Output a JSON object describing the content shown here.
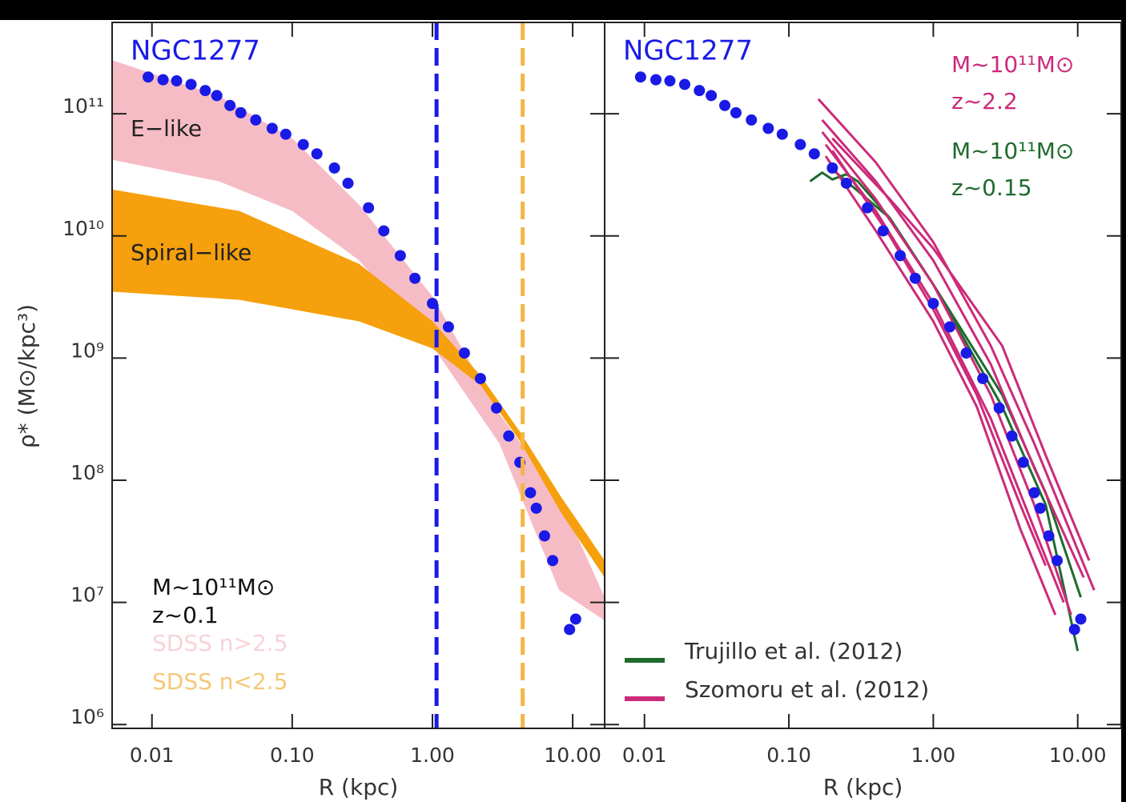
{
  "chart_data": [
    {
      "type": "scatter",
      "xlabel": "R (kpc)",
      "ylabel": "ρ* (M⊙/kpc³)",
      "xlim": [
        0.0052,
        16.9
      ],
      "ylim": [
        930000,
        560000000000.0
      ],
      "log_x": true,
      "log_y": true,
      "xticks": [
        0.01,
        {
          "value": 0.1,
          "label": "0.10"
        },
        {
          "value": 1,
          "label": "1.00"
        },
        {
          "value": 10,
          "label": "10.00"
        }
      ],
      "yticks": [
        {
          "value": 1000000,
          "label": "10⁶"
        },
        {
          "value": 10000000,
          "label": "10⁷"
        },
        {
          "value": 100000000,
          "label": "10⁸"
        },
        {
          "value": 1000000000,
          "label": "10⁹"
        },
        {
          "value": 10000000000,
          "label": "10¹⁰"
        },
        {
          "value": 100000000000,
          "label": "10¹¹"
        }
      ],
      "points": {
        "name": "NGC1277",
        "color": "#1a1ae6",
        "x": [
          0.0094,
          0.012,
          0.015,
          0.019,
          0.024,
          0.029,
          0.036,
          0.043,
          0.055,
          0.072,
          0.09,
          0.12,
          0.15,
          0.2,
          0.25,
          0.35,
          0.45,
          0.59,
          0.75,
          1.0,
          1.3,
          1.69,
          2.2,
          2.86,
          3.5,
          4.2,
          5.0,
          5.5,
          6.3,
          7.2,
          9.5,
          10.5
        ],
        "values": [
          200000000000.0,
          190000000000.0,
          186000000000.0,
          174000000000.0,
          155000000000.0,
          141000000000.0,
          117000000000.0,
          102000000000.0,
          89000000000.0,
          76000000000.0,
          68000000000.0,
          56000000000.0,
          47000000000.0,
          36000000000.0,
          27000000000.0,
          17000000000.0,
          11000000000.0,
          6900000000.0,
          4500000000.0,
          2800000000.0,
          1800000000.0,
          1100000000.0,
          680000000.0,
          390000000.0,
          230000000.0,
          140000000.0,
          79000000.0,
          59000000.0,
          35000000.0,
          22000000.0,
          6000000.0,
          7300000.0
        ]
      },
      "bands": [
        {
          "name": "E−like",
          "color": "#f6bcc6",
          "x": [
            0.0052,
            0.03,
            0.1,
            0.3,
            1,
            3,
            8,
            16.9
          ],
          "upper": [
            275000000000.0,
            140000000000.0,
            63000000000.0,
            18000000000.0,
            3200000000.0,
            350000000.0,
            74000000.0,
            11000000.0
          ],
          "lower": [
            42000000000.0,
            28000000000.0,
            16000000000.0,
            6300000000.0,
            1260000000.0,
            200000000.0,
            12600000.0,
            7100000.0
          ]
        },
        {
          "name": "Spiral−like",
          "color": "#f5a00c",
          "x": [
            0.0052,
            0.042,
            0.3,
            1,
            2.2,
            4.2,
            8.2,
            16.9
          ],
          "upper": [
            24000000000.0,
            16000000000.0,
            5900000000.0,
            2000000000.0,
            720000000.0,
            250000000.0,
            74000000.0,
            22000000.0
          ],
          "lower": [
            3500000000.0,
            3000000000.0,
            2000000000.0,
            1200000000.0,
            600000000.0,
            210000000.0,
            55000000.0,
            16000000.0
          ]
        }
      ],
      "vlines": [
        {
          "x": 1.07,
          "color": "#1a1ae6"
        },
        {
          "x": 4.4,
          "color": "#f5b547"
        }
      ],
      "annotations": [
        {
          "text": "M~10¹¹M⊙",
          "color": "#111111"
        },
        {
          "text": "z~0.1",
          "color": "#111111"
        },
        {
          "text": "SDSS n>2.5",
          "color": "#f7d3d8"
        },
        {
          "text": "SDSS n<2.5",
          "color": "#f6c878"
        }
      ]
    },
    {
      "type": "scatter",
      "xlabel": "R (kpc)",
      "xlim": [
        0.0053,
        20
      ],
      "ylim": [
        930000,
        560000000000.0
      ],
      "log_x": true,
      "log_y": true,
      "xticks": [
        0.01,
        {
          "value": 0.1,
          "label": "0.10"
        },
        {
          "value": 1,
          "label": "1.00"
        },
        {
          "value": 10,
          "label": "10.00"
        }
      ],
      "yticks": [
        1000000,
        10000000,
        100000000,
        1000000000,
        10000000000,
        100000000000
      ],
      "legend": "lower left",
      "series": [
        {
          "name": "Trujillo et al. (2012)",
          "color": "#1f6b2e",
          "lines": [
            {
              "x": [
                0.14,
                0.17,
                0.2,
                0.25,
                0.3,
                0.5,
                1,
                3,
                6,
                10
              ],
              "values": [
                28000000000.0,
                33000000000.0,
                29000000000.0,
                32000000000.0,
                28000000000.0,
                14000000000.0,
                4000000000.0,
                400000000.0,
                63000000.0,
                4000000.0
              ]
            },
            {
              "x": [
                0.2,
                0.5,
                1,
                3,
                6,
                10.5
              ],
              "values": [
                35000000000.0,
                14000000000.0,
                4000000000.0,
                500000000.0,
                79000000.0,
                11000000.0
              ]
            }
          ]
        },
        {
          "name": "Szomoru et al. (2012)",
          "color": "#cc2a7a",
          "lines": [
            {
              "x": [
                0.16,
                0.4,
                1,
                2.5,
                5,
                13
              ],
              "values": [
                132000000000.0,
                40000000000.0,
                8900000000.0,
                1260000000.0,
                200000000.0,
                12600000.0
              ]
            },
            {
              "x": [
                0.17,
                0.4,
                1,
                2.5,
                5,
                11
              ],
              "values": [
                89000000000.0,
                28000000000.0,
                6300000000.0,
                890000000.0,
                126000000.0,
                16000000.0
              ]
            },
            {
              "x": [
                0.17,
                0.4,
                1,
                2.5,
                5,
                9
              ],
              "values": [
                71000000000.0,
                20000000000.0,
                4000000000.0,
                500000000.0,
                63000000.0,
                7900000.0
              ]
            },
            {
              "x": [
                0.18,
                0.4,
                1,
                2.5,
                5,
                8
              ],
              "values": [
                56000000000.0,
                16000000000.0,
                2800000000.0,
                320000000.0,
                40000000.0,
                10000000.0
              ]
            },
            {
              "x": [
                0.18,
                0.4,
                1,
                2,
                4,
                7
              ],
              "values": [
                45000000000.0,
                11000000000.0,
                2000000000.0,
                400000000.0,
                40000000.0,
                7900000.0
              ]
            },
            {
              "x": [
                0.2,
                0.5,
                1,
                2,
                4,
                6
              ],
              "values": [
                50000000000.0,
                10000000000.0,
                2500000000.0,
                500000000.0,
                63000000.0,
                20000000.0
              ]
            },
            {
              "x": [
                0.2,
                0.5,
                1,
                3,
                6,
                12
              ],
              "values": [
                63000000000.0,
                20000000000.0,
                7900000000.0,
                1260000000.0,
                160000000.0,
                22000000.0
              ]
            }
          ]
        }
      ],
      "points": {
        "name": "NGC1277",
        "color": "#1a1ae6",
        "x": [
          0.0094,
          0.012,
          0.015,
          0.019,
          0.024,
          0.029,
          0.036,
          0.043,
          0.055,
          0.072,
          0.09,
          0.12,
          0.15,
          0.2,
          0.25,
          0.35,
          0.45,
          0.59,
          0.75,
          1.0,
          1.3,
          1.69,
          2.2,
          2.86,
          3.5,
          4.2,
          5.0,
          5.5,
          6.3,
          7.2,
          9.5,
          10.5
        ],
        "values": [
          200000000000.0,
          190000000000.0,
          186000000000.0,
          174000000000.0,
          155000000000.0,
          141000000000.0,
          117000000000.0,
          102000000000.0,
          89000000000.0,
          76000000000.0,
          68000000000.0,
          56000000000.0,
          47000000000.0,
          36000000000.0,
          27000000000.0,
          17000000000.0,
          11000000000.0,
          6900000000.0,
          4500000000.0,
          2800000000.0,
          1800000000.0,
          1100000000.0,
          680000000.0,
          390000000.0,
          230000000.0,
          140000000.0,
          79000000.0,
          59000000.0,
          35000000.0,
          22000000.0,
          6000000.0,
          7300000.0
        ]
      },
      "annotations": [
        {
          "text": "M~10¹¹M⊙",
          "color": "#cc2a7a"
        },
        {
          "text": "z~2.2",
          "color": "#cc2a7a"
        },
        {
          "text": "M~10¹¹M⊙",
          "color": "#1f6b2e"
        },
        {
          "text": "z~0.15",
          "color": "#1f6b2e"
        }
      ]
    }
  ]
}
